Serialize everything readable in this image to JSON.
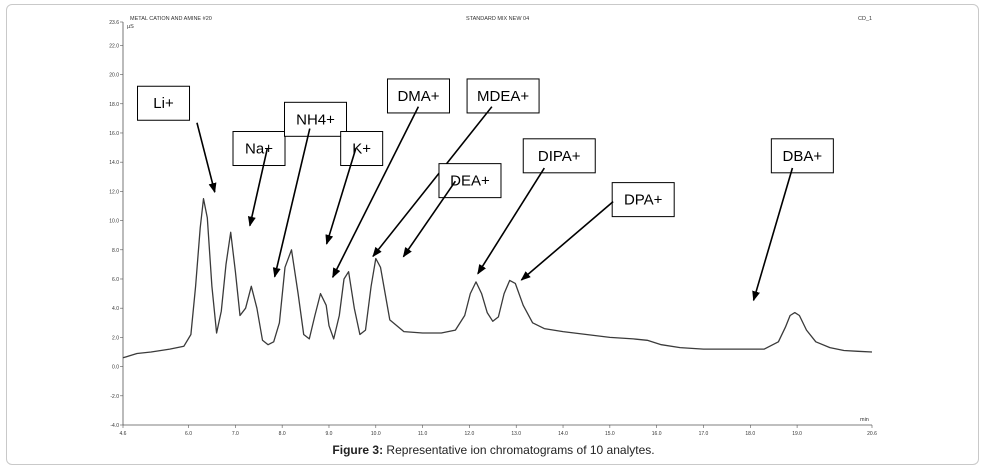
{
  "header": {
    "left": "METAL CATION AND AMINE #20",
    "center": "STANDARD MIX NEW 04",
    "right": "CD_1",
    "y_unit": "µS",
    "x_unit": "min"
  },
  "caption": {
    "figure": "Figure 3:",
    "text": " Representative ion chromatograms of 10 analytes."
  },
  "chart_data": {
    "type": "line",
    "xlim": [
      4.6,
      20.6
    ],
    "ylim": [
      -4.0,
      23.6
    ],
    "x_ticks": [
      "4.6",
      "6.0",
      "7.0",
      "8.0",
      "9.0",
      "10.0",
      "11.0",
      "12.0",
      "13.0",
      "14.0",
      "15.0",
      "16.0",
      "17.0",
      "18.0",
      "19.0",
      "20.6"
    ],
    "y_ticks": [
      "-4.0",
      "-2.0",
      "0.0",
      "2.0",
      "4.0",
      "6.0",
      "8.0",
      "10.0",
      "12.0",
      "14.0",
      "16.0",
      "18.0",
      "20.0",
      "22.0",
      "23.6"
    ],
    "line_color": "#3a3a3a",
    "series": [
      {
        "x": [
          4.6,
          4.9,
          5.2,
          5.6,
          5.9,
          6.05,
          6.15,
          6.25,
          6.32,
          6.4,
          6.5,
          6.6,
          6.7,
          6.8,
          6.9,
          7.0,
          7.1,
          7.22,
          7.34,
          7.46,
          7.58,
          7.7,
          7.82,
          7.94,
          8.06,
          8.2,
          8.34,
          8.46,
          8.58,
          8.7,
          8.82,
          8.94,
          9.0,
          9.1,
          9.22,
          9.32,
          9.42,
          9.54,
          9.66,
          9.78,
          9.9,
          10.0,
          10.1,
          10.3,
          10.6,
          11.0,
          11.4,
          11.7,
          11.9,
          12.02,
          12.14,
          12.26,
          12.38,
          12.5,
          12.62,
          12.74,
          12.86,
          12.98,
          13.15,
          13.35,
          13.6,
          14.0,
          14.5,
          15.0,
          15.5,
          15.8,
          16.1,
          16.5,
          17.0,
          17.5,
          18.0,
          18.3,
          18.6,
          18.75,
          18.85,
          18.95,
          19.05,
          19.2,
          19.4,
          19.7,
          20.0,
          20.3,
          20.6
        ],
        "y": [
          0.6,
          0.9,
          1.0,
          1.2,
          1.4,
          2.2,
          5.5,
          9.5,
          11.5,
          10.2,
          5.5,
          2.3,
          3.8,
          7.0,
          9.2,
          6.5,
          3.5,
          4.0,
          5.5,
          4.0,
          1.8,
          1.5,
          1.7,
          3.0,
          6.8,
          8.0,
          5.0,
          2.2,
          1.9,
          3.5,
          5.0,
          4.2,
          2.8,
          1.9,
          3.5,
          6.0,
          6.5,
          4.0,
          2.2,
          2.5,
          5.5,
          7.4,
          6.8,
          3.2,
          2.4,
          2.3,
          2.3,
          2.5,
          3.5,
          5.0,
          5.8,
          5.0,
          3.7,
          3.1,
          3.4,
          5.0,
          5.9,
          5.7,
          4.2,
          3.0,
          2.6,
          2.4,
          2.2,
          2.0,
          1.9,
          1.8,
          1.5,
          1.3,
          1.2,
          1.2,
          1.2,
          1.2,
          1.7,
          2.7,
          3.5,
          3.7,
          3.5,
          2.5,
          1.7,
          1.3,
          1.1,
          1.05,
          1.0
        ]
      }
    ],
    "annotations": [
      {
        "label": "Li+",
        "box": [
          4.91,
          19.2
        ],
        "tail": [
          6.18,
          16.7
        ],
        "head": [
          6.56,
          11.95
        ]
      },
      {
        "label": "Na+",
        "box": [
          6.95,
          16.1
        ],
        "tail": [
          7.68,
          14.9
        ],
        "head": [
          7.31,
          9.65
        ]
      },
      {
        "label": "NH4+",
        "box": [
          8.05,
          18.1
        ],
        "tail": [
          8.59,
          16.3
        ],
        "head": [
          7.84,
          6.15
        ]
      },
      {
        "label": "K+",
        "box": [
          9.25,
          16.1
        ],
        "tail": [
          9.57,
          14.9
        ],
        "head": [
          8.95,
          8.4
        ]
      },
      {
        "label": "DMA+",
        "box": [
          10.25,
          19.7
        ],
        "tail": [
          10.91,
          17.8
        ],
        "head": [
          9.08,
          6.12
        ]
      },
      {
        "label": "MDEA+",
        "box": [
          11.95,
          19.7
        ],
        "tail": [
          12.48,
          17.8
        ],
        "head": [
          9.94,
          7.55
        ]
      },
      {
        "label": "DEA+",
        "box": [
          11.35,
          13.9
        ],
        "tail": [
          11.7,
          12.7
        ],
        "head": [
          10.59,
          7.53
        ]
      },
      {
        "label": "DIPA+",
        "box": [
          13.15,
          15.6
        ],
        "tail": [
          13.6,
          13.6
        ],
        "head": [
          12.18,
          6.36
        ]
      },
      {
        "label": "DPA+",
        "box": [
          15.05,
          12.6
        ],
        "tail": [
          15.07,
          11.3
        ],
        "head": [
          13.11,
          5.93
        ]
      },
      {
        "label": "DBA+",
        "box": [
          18.45,
          15.6
        ],
        "tail": [
          18.9,
          13.6
        ],
        "head": [
          18.07,
          4.54
        ]
      }
    ]
  }
}
